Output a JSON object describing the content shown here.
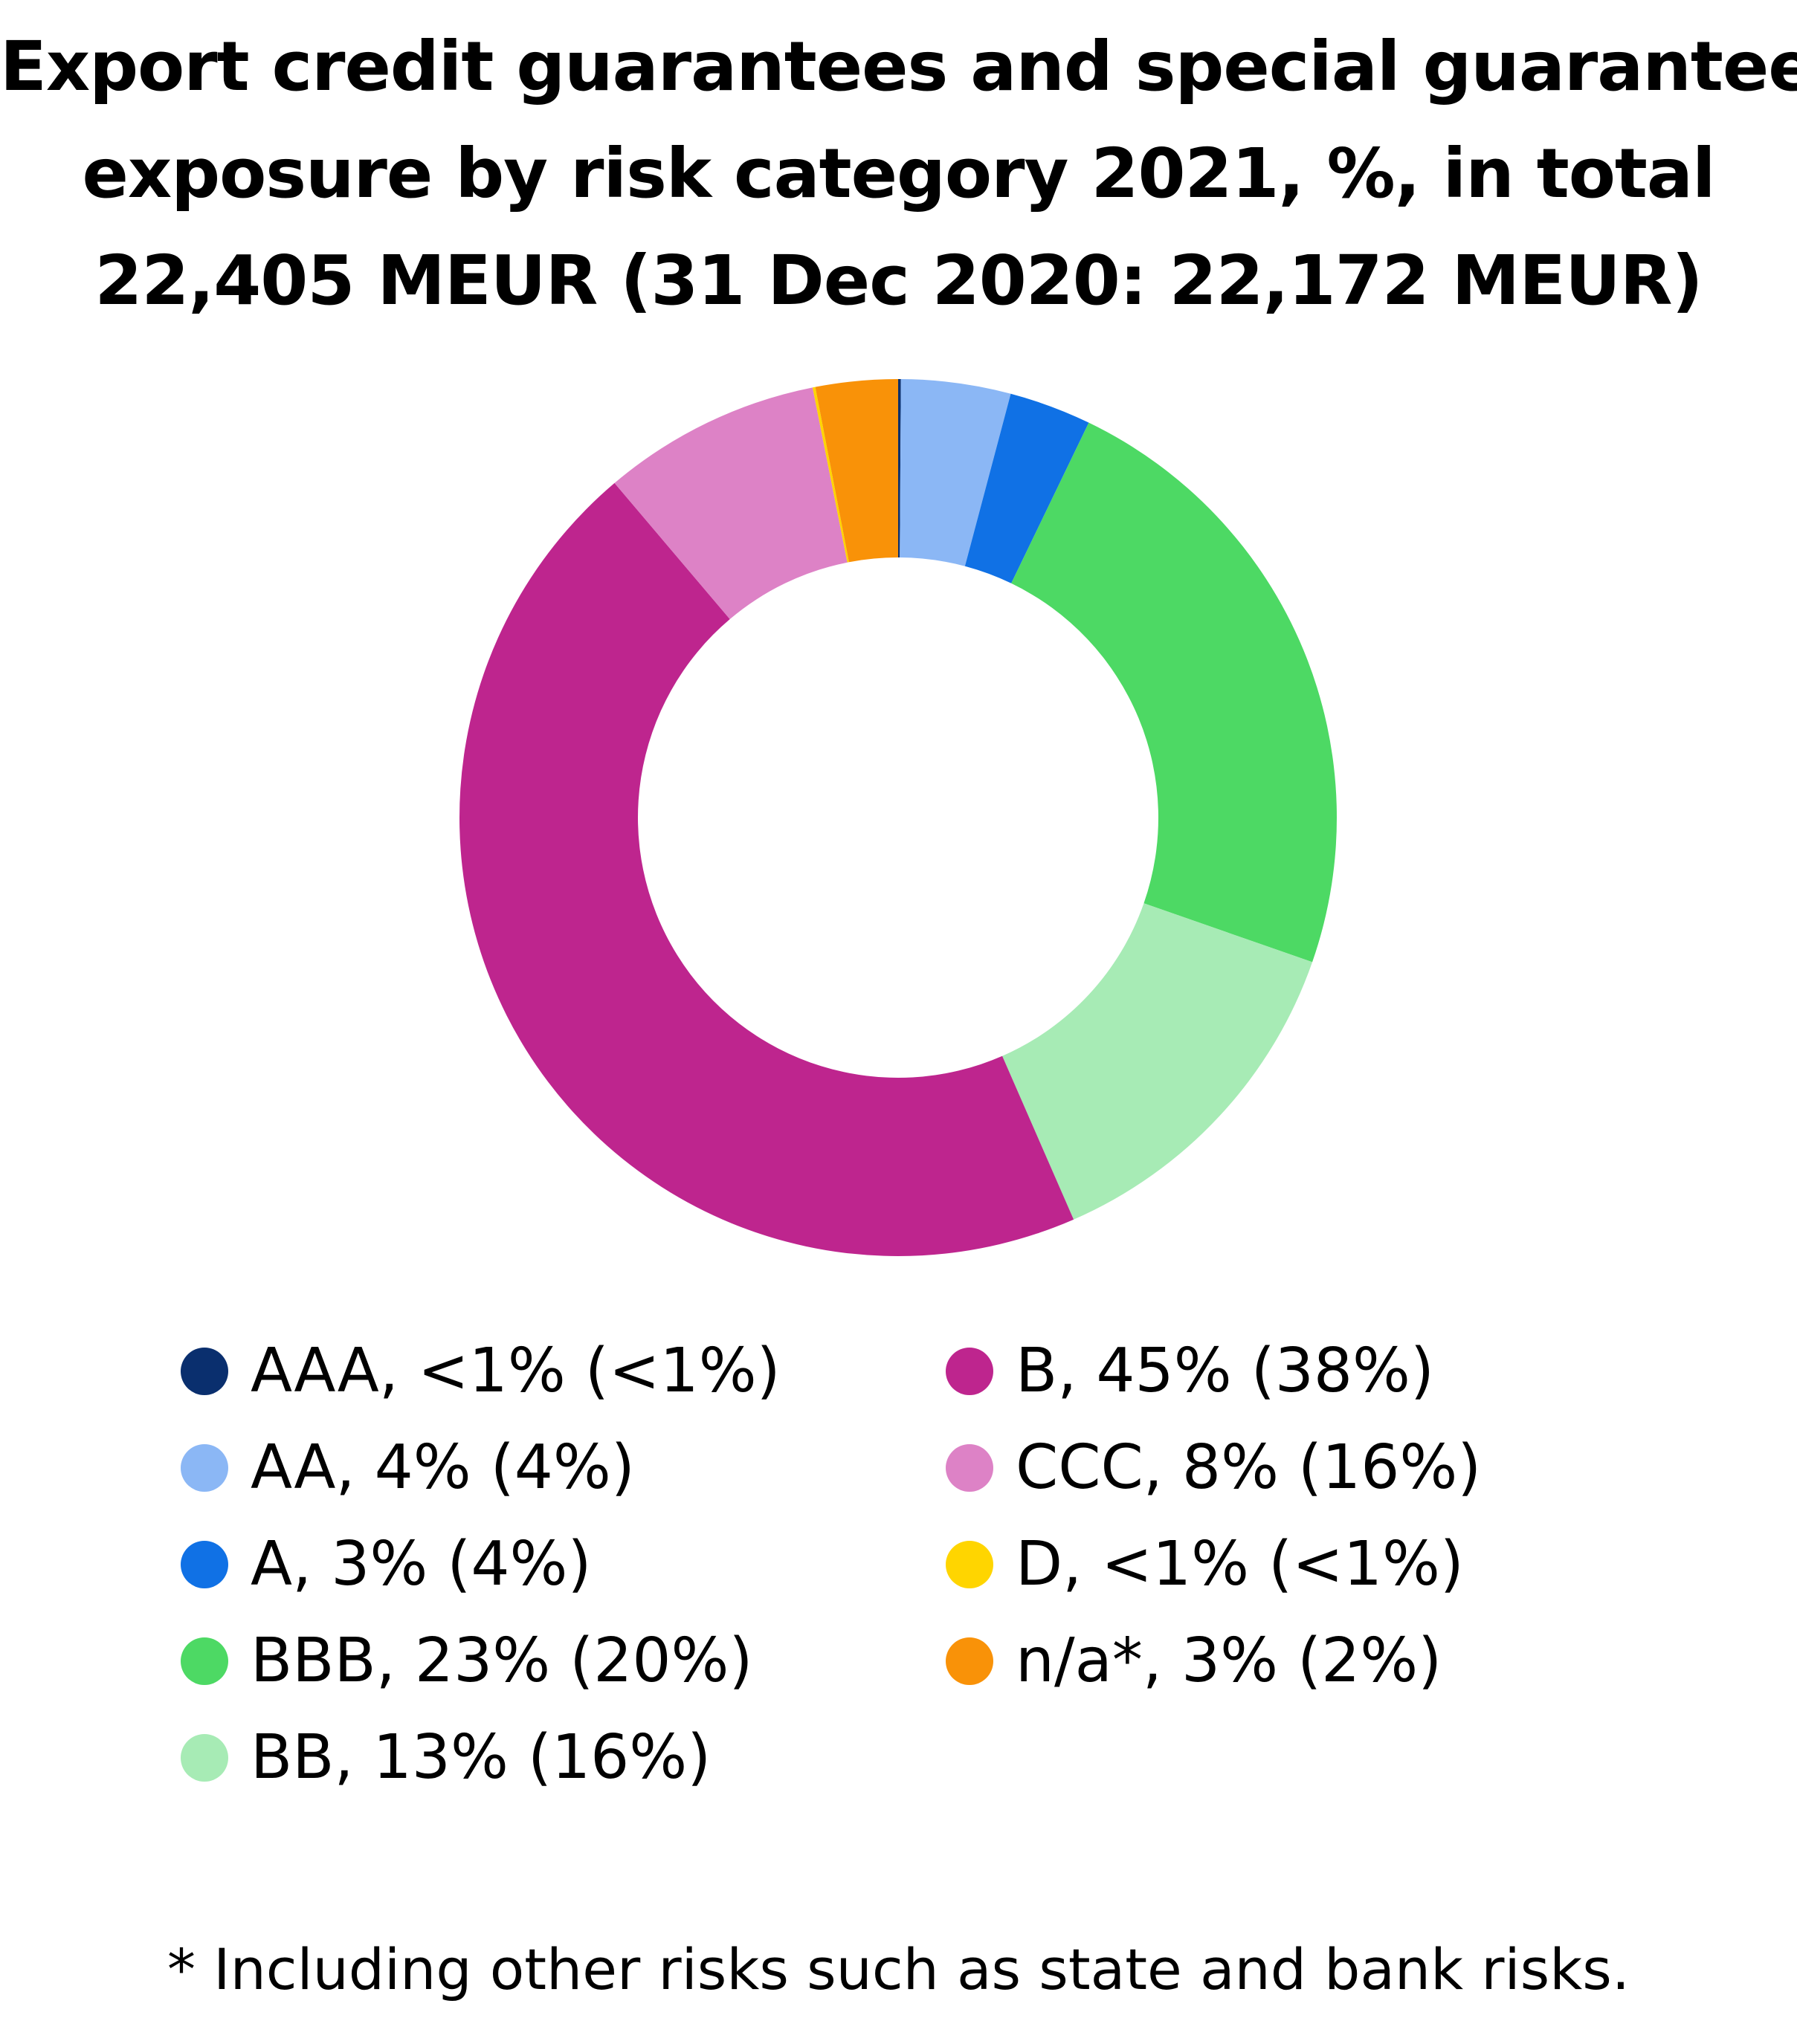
{
  "chart_data": {
    "type": "pie",
    "title_lines": [
      "Export credit guarantees and special guarantees,",
      "exposure by risk category 2021, %, in total",
      "22,405 MEUR (31 Dec 2020: 22,172 MEUR)"
    ],
    "slices": [
      {
        "label": "AAA, <1% (<1%)",
        "value": 0.1,
        "color": "#0a2f6e"
      },
      {
        "label": "AA, 4% (4%)",
        "value": 4,
        "color": "#8bb7f5"
      },
      {
        "label": "A, 3% (4%)",
        "value": 3,
        "color": "#1071e5"
      },
      {
        "label": "BBB, 23% (20%)",
        "value": 23,
        "color": "#4dd964"
      },
      {
        "label": "BB, 13% (16%)",
        "value": 13,
        "color": "#a7ebb5"
      },
      {
        "label": "B, 45% (38%)",
        "value": 45,
        "color": "#be258e"
      },
      {
        "label": "CCC, 8% (16%)",
        "value": 8,
        "color": "#dd82c6"
      },
      {
        "label": "D, <1% (<1%)",
        "value": 0.1,
        "color": "#ffd500"
      },
      {
        "label": "n/a*, 3% (2%)",
        "value": 3,
        "color": "#f99208"
      }
    ],
    "footnote": "* Including other risks such as state and bank risks."
  }
}
